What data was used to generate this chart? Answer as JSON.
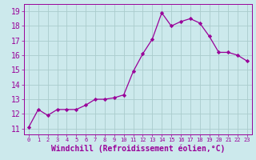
{
  "x": [
    0,
    1,
    2,
    3,
    4,
    5,
    6,
    7,
    8,
    9,
    10,
    11,
    12,
    13,
    14,
    15,
    16,
    17,
    18,
    19,
    20,
    21,
    22,
    23
  ],
  "y": [
    11.1,
    12.3,
    11.9,
    12.3,
    12.3,
    12.3,
    12.6,
    13.0,
    13.0,
    13.1,
    13.3,
    14.9,
    16.1,
    17.1,
    18.9,
    18.0,
    18.3,
    18.5,
    18.2,
    17.3,
    16.2,
    16.2,
    16.0,
    15.6
  ],
  "line_color": "#990099",
  "marker": "D",
  "marker_size": 2.2,
  "bg_color": "#cce9ec",
  "grid_color": "#aacccc",
  "tick_color": "#990099",
  "label_color": "#990099",
  "xlabel": "Windchill (Refroidissement éolien,°C)",
  "xlabel_fontsize": 7,
  "ytick_fontsize": 7,
  "xtick_fontsize": 5,
  "yticks": [
    11,
    12,
    13,
    14,
    15,
    16,
    17,
    18,
    19
  ],
  "xticks": [
    0,
    1,
    2,
    3,
    4,
    5,
    6,
    7,
    8,
    9,
    10,
    11,
    12,
    13,
    14,
    15,
    16,
    17,
    18,
    19,
    20,
    21,
    22,
    23
  ],
  "ylim": [
    10.6,
    19.5
  ],
  "xlim": [
    -0.5,
    23.5
  ]
}
